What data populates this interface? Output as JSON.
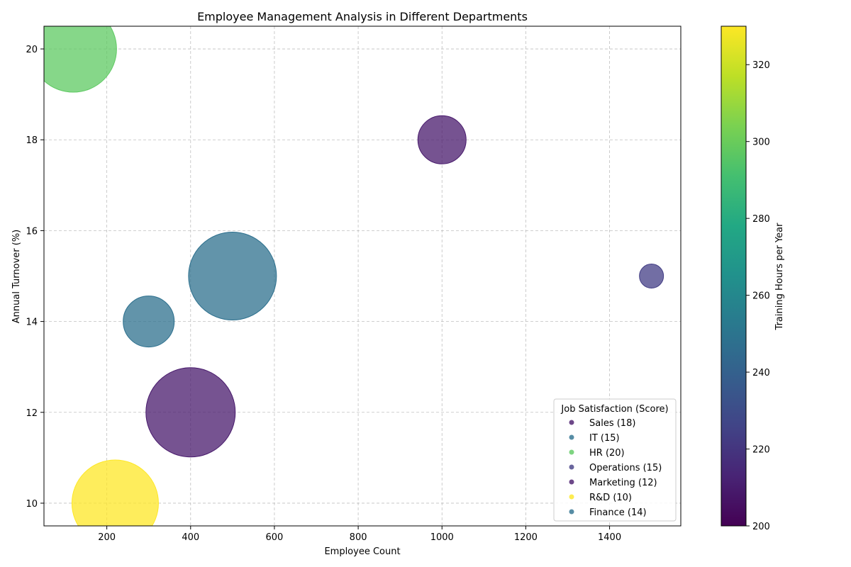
{
  "chart_data": {
    "type": "scatter",
    "title": "Employee Management Analysis in Different Departments",
    "xlabel": "Employee Count",
    "ylabel": "Annual Turnover (%)",
    "xlim": [
      50,
      1570
    ],
    "ylim": [
      9.5,
      20.5
    ],
    "xticks": [
      200,
      400,
      600,
      800,
      1000,
      1200,
      1400
    ],
    "yticks": [
      10,
      12,
      14,
      16,
      18,
      20
    ],
    "grid": true,
    "colorbar": {
      "label": "Training Hours per Year",
      "range": [
        200,
        330
      ],
      "ticks": [
        200,
        220,
        240,
        260,
        280,
        300,
        320
      ],
      "colormap": "viridis"
    },
    "legend": {
      "title": "Job Satisfaction (Score)",
      "placement": "lower-right"
    },
    "points": [
      {
        "name": "Sales",
        "label": "Sales (18)",
        "x": 1000,
        "y": 18,
        "satisfaction": 18,
        "training": 205,
        "color": "#481a6c"
      },
      {
        "name": "IT",
        "label": "IT (15)",
        "x": 500,
        "y": 15,
        "satisfaction": 15,
        "training": 255,
        "color": "#2d708e"
      },
      {
        "name": "HR",
        "label": "HR (20)",
        "x": 120,
        "y": 20,
        "satisfaction": 20,
        "training": 300,
        "color": "#5ec962"
      },
      {
        "name": "Operations",
        "label": "Operations (15)",
        "x": 1500,
        "y": 15,
        "satisfaction": 15,
        "training": 220,
        "color": "#433e85"
      },
      {
        "name": "Marketing",
        "label": "Marketing (12)",
        "x": 400,
        "y": 12,
        "satisfaction": 12,
        "training": 205,
        "color": "#481a6c"
      },
      {
        "name": "R&D",
        "label": "R&D (10)",
        "x": 220,
        "y": 10,
        "satisfaction": 10,
        "training": 330,
        "color": "#fde725"
      },
      {
        "name": "Finance",
        "label": "Finance (14)",
        "x": 300,
        "y": 14,
        "satisfaction": 14,
        "training": 252,
        "color": "#2d708e"
      }
    ],
    "bubble_radius_scale": [
      17,
      37,
      60,
      37,
      63,
      61,
      36
    ]
  }
}
